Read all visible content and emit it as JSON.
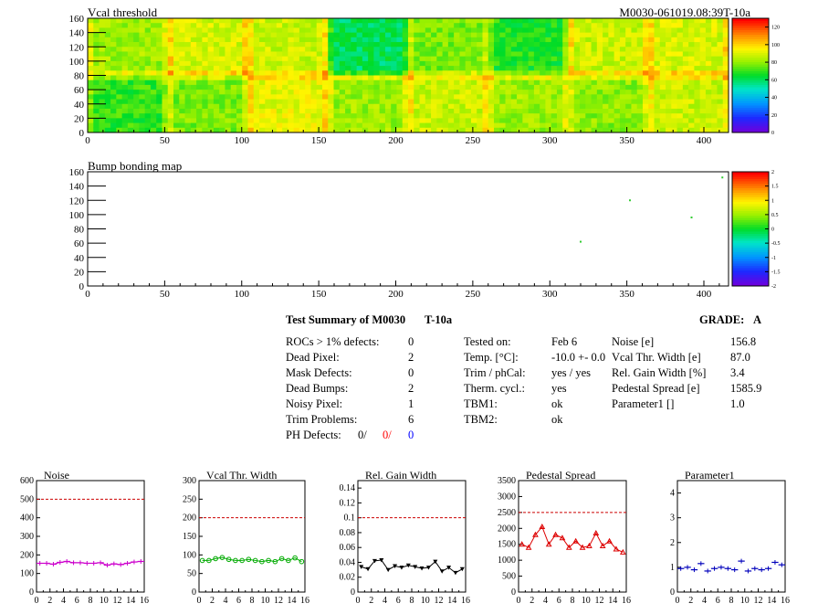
{
  "charts": {
    "vcal_map": {
      "title": "Vcal threshold",
      "id_label": "M0030-061019.08:39T-10a",
      "x_ticks": [
        "0",
        "50",
        "100",
        "150",
        "200",
        "250",
        "300",
        "350",
        "400"
      ],
      "y_ticks": [
        "0",
        "20",
        "40",
        "60",
        "80",
        "100",
        "120",
        "140",
        "160"
      ],
      "palette_ticks": [
        "120",
        "100",
        "80",
        "60",
        "40",
        "20",
        "0"
      ]
    },
    "bump_map": {
      "title": "Bump bonding map",
      "x_ticks": [
        "0",
        "50",
        "100",
        "150",
        "200",
        "250",
        "300",
        "350",
        "400"
      ],
      "y_ticks": [
        "0",
        "20",
        "40",
        "60",
        "80",
        "100",
        "120",
        "140",
        "160"
      ],
      "palette_ticks": [
        "2",
        "1.5",
        "1",
        "0.5",
        "0",
        "-0.5",
        "-1",
        "-1.5",
        "-2"
      ]
    }
  },
  "summary": {
    "title": "Test Summary of M0030",
    "temp_code": "T-10a",
    "grade_label": "GRADE:",
    "grade_value": "A",
    "left_rows": [
      {
        "label": "ROCs > 1% defects:",
        "value": "0"
      },
      {
        "label": "Dead Pixel:",
        "value": "2"
      },
      {
        "label": "Mask Defects:",
        "value": "0"
      },
      {
        "label": "Dead Bumps:",
        "value": "2"
      },
      {
        "label": "Noisy Pixel:",
        "value": "1"
      },
      {
        "label": "Trim Problems:",
        "value": "6"
      }
    ],
    "ph_defects": {
      "label": "PH Defects:",
      "v1": "0/",
      "v2": "0/",
      "v3": "0"
    },
    "mid_rows": [
      {
        "label": "Tested on:",
        "value": "Feb 6"
      },
      {
        "label": "Temp. [°C]:",
        "value": "-10.0 +- 0.0"
      },
      {
        "label": "Trim / phCal:",
        "value": "yes / yes"
      },
      {
        "label": "Therm. cycl.:",
        "value": "yes"
      },
      {
        "label": "TBM1:",
        "value": "ok"
      },
      {
        "label": "TBM2:",
        "value": "ok"
      }
    ],
    "right_rows": [
      {
        "label": "Noise [e]",
        "value": "156.8"
      },
      {
        "label": "Vcal Thr. Width [e]",
        "value": "87.0"
      },
      {
        "label": "Rel. Gain Width [%]",
        "value": "3.4"
      },
      {
        "label": "Pedestal Spread [e]",
        "value": "1585.9"
      },
      {
        "label": "Parameter1 []",
        "value": "1.0"
      }
    ]
  },
  "chart_data": [
    {
      "type": "heatmap",
      "title": "Vcal threshold",
      "xlim": [
        0,
        416
      ],
      "ylim": [
        0,
        160
      ],
      "zlim": [
        0,
        130
      ],
      "grid": false,
      "legend": "color-palette-right",
      "roc_mean_values": {
        "top_row": [
          82,
          90,
          88,
          60,
          78,
          68,
          88,
          90
        ],
        "bottom_row": [
          70,
          78,
          92,
          82,
          88,
          82,
          80,
          88
        ]
      }
    },
    {
      "type": "heatmap",
      "title": "Bump bonding map",
      "xlim": [
        0,
        416
      ],
      "ylim": [
        0,
        160
      ],
      "zlim": [
        -2,
        2
      ],
      "grid": false,
      "legend": "color-palette-right",
      "points": [
        [
          412,
          152
        ],
        [
          352,
          120
        ],
        [
          392,
          96
        ],
        [
          320,
          62
        ]
      ]
    },
    {
      "type": "line",
      "title": "Noise",
      "xlim": [
        0,
        16
      ],
      "ylim": [
        0,
        600
      ],
      "reference_line": 500,
      "x_ticks": [
        "0",
        "2",
        "4",
        "6",
        "8",
        "10",
        "12",
        "14",
        "16"
      ],
      "y_ticks": [
        "0",
        "100",
        "200",
        "300",
        "400",
        "500",
        "600"
      ],
      "color": "#cc00cc",
      "marker": "cross",
      "values": [
        155,
        155,
        150,
        160,
        165,
        158,
        158,
        155,
        155,
        158,
        145,
        152,
        148,
        155,
        162,
        165
      ]
    },
    {
      "type": "line",
      "title": "Vcal Thr. Width",
      "xlim": [
        0,
        16
      ],
      "ylim": [
        0,
        300
      ],
      "reference_line": 200,
      "x_ticks": [
        "0",
        "2",
        "4",
        "6",
        "8",
        "10",
        "12",
        "14",
        "16"
      ],
      "y_ticks": [
        "0",
        "50",
        "100",
        "150",
        "200",
        "250",
        "300"
      ],
      "color": "#00aa00",
      "marker": "circle",
      "values": [
        85,
        85,
        90,
        93,
        88,
        85,
        85,
        88,
        85,
        82,
        85,
        82,
        90,
        85,
        92,
        82
      ]
    },
    {
      "type": "line",
      "title": "Rel. Gain Width",
      "xlim": [
        0,
        16
      ],
      "ylim": [
        0,
        0.15
      ],
      "reference_line": 0.1,
      "x_ticks": [
        "0",
        "2",
        "4",
        "6",
        "8",
        "10",
        "12",
        "14",
        "16"
      ],
      "y_ticks": [
        "0",
        "0.02",
        "0.04",
        "0.06",
        "0.08",
        "0.1",
        "0.12",
        "0.14"
      ],
      "color": "#000000",
      "marker": "triangle-down",
      "values": [
        0.034,
        0.031,
        0.042,
        0.043,
        0.03,
        0.035,
        0.033,
        0.036,
        0.034,
        0.032,
        0.033,
        0.041,
        0.028,
        0.033,
        0.026,
        0.031
      ]
    },
    {
      "type": "line",
      "title": "Pedestal Spread",
      "xlim": [
        0,
        16
      ],
      "ylim": [
        0,
        3500
      ],
      "reference_line": 2500,
      "x_ticks": [
        "0",
        "2",
        "4",
        "6",
        "8",
        "10",
        "12",
        "14",
        "16"
      ],
      "y_ticks": [
        "0",
        "500",
        "1000",
        "1500",
        "2000",
        "2500",
        "3000",
        "3500"
      ],
      "color": "#dd0000",
      "marker": "triangle-up",
      "values": [
        1500,
        1400,
        1800,
        2050,
        1500,
        1800,
        1700,
        1400,
        1600,
        1400,
        1450,
        1850,
        1450,
        1600,
        1350,
        1250
      ]
    },
    {
      "type": "line",
      "title": "Parameter1",
      "xlim": [
        0,
        16
      ],
      "ylim": [
        0,
        4.5
      ],
      "reference_line": null,
      "x_ticks": [
        "0",
        "2",
        "4",
        "6",
        "8",
        "10",
        "12",
        "14",
        "16"
      ],
      "y_ticks": [
        "0",
        "1",
        "2",
        "3",
        "4"
      ],
      "color": "#0000bb",
      "marker": "cross",
      "values": [
        0.95,
        1.0,
        0.9,
        1.15,
        0.85,
        0.95,
        1.0,
        0.95,
        0.9,
        1.25,
        0.85,
        0.95,
        0.9,
        0.95,
        1.2,
        1.1
      ]
    }
  ]
}
